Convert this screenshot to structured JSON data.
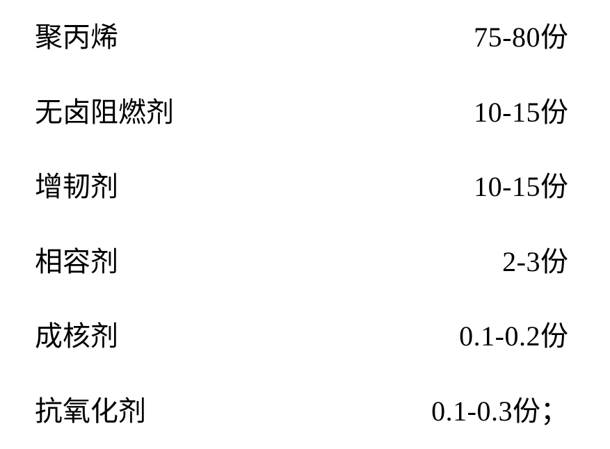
{
  "composition": {
    "rows": [
      {
        "label": "聚丙烯",
        "amount": "75-80",
        "unit": "份",
        "suffix": ""
      },
      {
        "label": "无卤阻燃剂",
        "amount": "10-15",
        "unit": "份",
        "suffix": ""
      },
      {
        "label": "增韧剂",
        "amount": "10-15",
        "unit": "份",
        "suffix": ""
      },
      {
        "label": "相容剂",
        "amount": "2-3",
        "unit": "份",
        "suffix": ""
      },
      {
        "label": "成核剂",
        "amount": "0.1-0.2",
        "unit": "份",
        "suffix": ""
      },
      {
        "label": "抗氧化剂",
        "amount": "0.1-0.3",
        "unit": "份",
        "suffix": "；"
      }
    ],
    "style": {
      "font_size_pt": 30,
      "text_color": "#000000",
      "background_color": "#ffffff",
      "label_font": "SimSun",
      "number_font": "Times New Roman"
    }
  }
}
